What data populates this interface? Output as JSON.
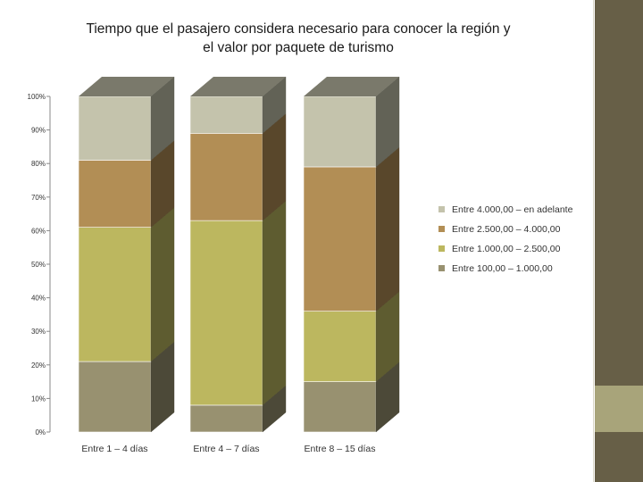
{
  "title_line1": "Tiempo que el pasajero considera necesario para conocer la región y",
  "title_line2": "el valor por paquete de turismo",
  "chart_data": {
    "type": "bar",
    "stacked": true,
    "three_d": true,
    "categories": [
      "Entre 1 – 4 días",
      "Entre 4 – 7 días",
      "Entre 8 – 15 días"
    ],
    "y_ticks": [
      "0%",
      "10%",
      "20%",
      "30%",
      "40%",
      "50%",
      "60%",
      "70%",
      "80%",
      "90%",
      "100%"
    ],
    "ylim": [
      0,
      100
    ],
    "legend_position": "right",
    "series": [
      {
        "name": "Entre 100,00 – 1.000,00",
        "values": [
          21,
          8,
          15
        ],
        "color": "#989170"
      },
      {
        "name": "Entre 1.000,00 – 2.500,00",
        "values": [
          40,
          55,
          21
        ],
        "color": "#bcb75f"
      },
      {
        "name": "Entre 2.500,00 – 4.000,00",
        "values": [
          20,
          26,
          43
        ],
        "color": "#b28e55"
      },
      {
        "name": "Entre 4.000,00 – en adelante",
        "values": [
          19,
          11,
          21
        ],
        "color": "#c4c3ac"
      }
    ]
  }
}
